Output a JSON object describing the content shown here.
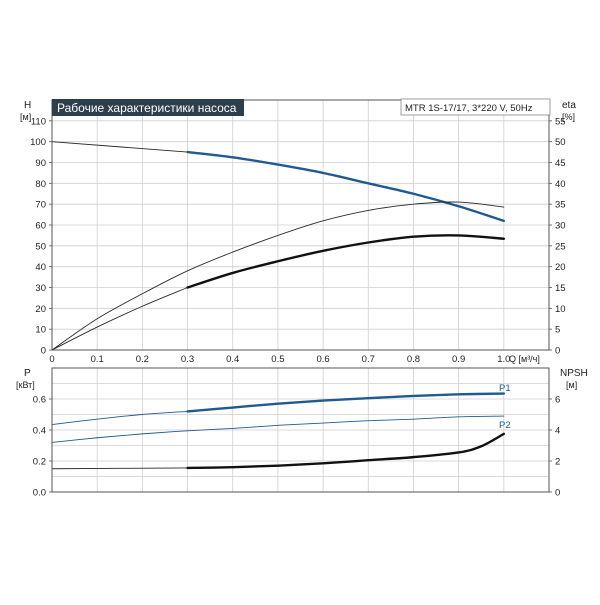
{
  "chart_data": [
    {
      "type": "line",
      "title": "Рабочие характеристики насоса",
      "model_label": "MTR 1S-17/17, 3*220 V, 50Hz",
      "xlabel": "Q [м³/ч]",
      "ylabel": "H",
      "ylabel_unit": "[м]",
      "y2label": "eta",
      "y2label_unit": "[%]",
      "xlim": [
        0,
        1.1
      ],
      "ylim": [
        0,
        120
      ],
      "y2lim": [
        0,
        60
      ],
      "x_ticks": [
        "0",
        "0.1",
        "0.2",
        "0.3",
        "0.4",
        "0.5",
        "0.6",
        "0.7",
        "0.8",
        "0.9",
        "1.0"
      ],
      "y_ticks": [
        "0",
        "10",
        "20",
        "30",
        "40",
        "50",
        "60",
        "70",
        "80",
        "90",
        "100",
        "110"
      ],
      "y2_ticks": [
        "0",
        "5",
        "10",
        "15",
        "20",
        "25",
        "30",
        "35",
        "40",
        "45",
        "50",
        "55"
      ],
      "grid": true,
      "series": [
        {
          "axis": "left",
          "style": "thin",
          "color": "#2a2a2a",
          "x": [
            0,
            0.3
          ],
          "y": [
            100,
            95
          ]
        },
        {
          "axis": "left",
          "style": "bold",
          "color": "#1f5a92",
          "x": [
            0.3,
            0.4,
            0.5,
            0.6,
            0.7,
            0.8,
            0.9,
            1.0
          ],
          "y": [
            95,
            92.5,
            89,
            85,
            80,
            75,
            69,
            62
          ]
        },
        {
          "axis": "right",
          "style": "thin",
          "color": "#2a2a2a",
          "x": [
            0,
            0.1,
            0.2,
            0.3,
            0.4,
            0.5,
            0.6,
            0.7,
            0.8,
            0.9,
            1.0
          ],
          "y": [
            0,
            7.5,
            13.5,
            19,
            23.5,
            27.5,
            31,
            33.5,
            35,
            35.5,
            34.3
          ]
        },
        {
          "axis": "right",
          "style": "thin",
          "color": "#2a2a2a",
          "x": [
            0,
            0.1,
            0.2,
            0.3
          ],
          "y": [
            0,
            5.5,
            10.5,
            15
          ]
        },
        {
          "axis": "right",
          "style": "bold",
          "color": "#111111",
          "x": [
            0.3,
            0.4,
            0.5,
            0.6,
            0.7,
            0.8,
            0.9,
            1.0
          ],
          "y": [
            15,
            18.5,
            21.3,
            23.8,
            25.8,
            27.2,
            27.5,
            26.7
          ]
        }
      ]
    },
    {
      "type": "line",
      "xlabel": "",
      "ylabel": "P",
      "ylabel_unit": "[кВт]",
      "y2label": "NPSH",
      "y2label_unit": "[м]",
      "xlim": [
        0,
        1.1
      ],
      "ylim": [
        0,
        0.8
      ],
      "y2lim": [
        0,
        8
      ],
      "y_ticks": [
        "0.0",
        "0.2",
        "0.4",
        "0.6"
      ],
      "y2_ticks": [
        "0",
        "2",
        "4",
        "6"
      ],
      "grid": true,
      "series": [
        {
          "axis": "left",
          "style": "thin",
          "color": "#1f5a92",
          "x": [
            0,
            0.1,
            0.2,
            0.3
          ],
          "y": [
            0.435,
            0.47,
            0.5,
            0.52
          ]
        },
        {
          "axis": "left",
          "style": "bold",
          "color": "#1f5a92",
          "name": "P1",
          "x": [
            0.3,
            0.4,
            0.5,
            0.6,
            0.7,
            0.8,
            0.9,
            1.0
          ],
          "y": [
            0.52,
            0.545,
            0.57,
            0.59,
            0.605,
            0.62,
            0.63,
            0.635
          ]
        },
        {
          "axis": "left",
          "style": "thin",
          "color": "#1f5a92",
          "name": "P2",
          "x": [
            0,
            0.1,
            0.2,
            0.3,
            0.4,
            0.5,
            0.6,
            0.7,
            0.8,
            0.9,
            1.0
          ],
          "y": [
            0.32,
            0.35,
            0.375,
            0.395,
            0.41,
            0.43,
            0.445,
            0.46,
            0.47,
            0.485,
            0.49
          ]
        },
        {
          "axis": "right",
          "style": "thin",
          "color": "#2a2a2a",
          "x": [
            0,
            0.3
          ],
          "y": [
            1.5,
            1.55
          ]
        },
        {
          "axis": "right",
          "style": "bold",
          "color": "#111111",
          "x": [
            0.3,
            0.4,
            0.5,
            0.6,
            0.7,
            0.8,
            0.9,
            0.95,
            1.0
          ],
          "y": [
            1.55,
            1.6,
            1.7,
            1.85,
            2.05,
            2.25,
            2.55,
            2.95,
            3.75
          ]
        }
      ]
    }
  ]
}
